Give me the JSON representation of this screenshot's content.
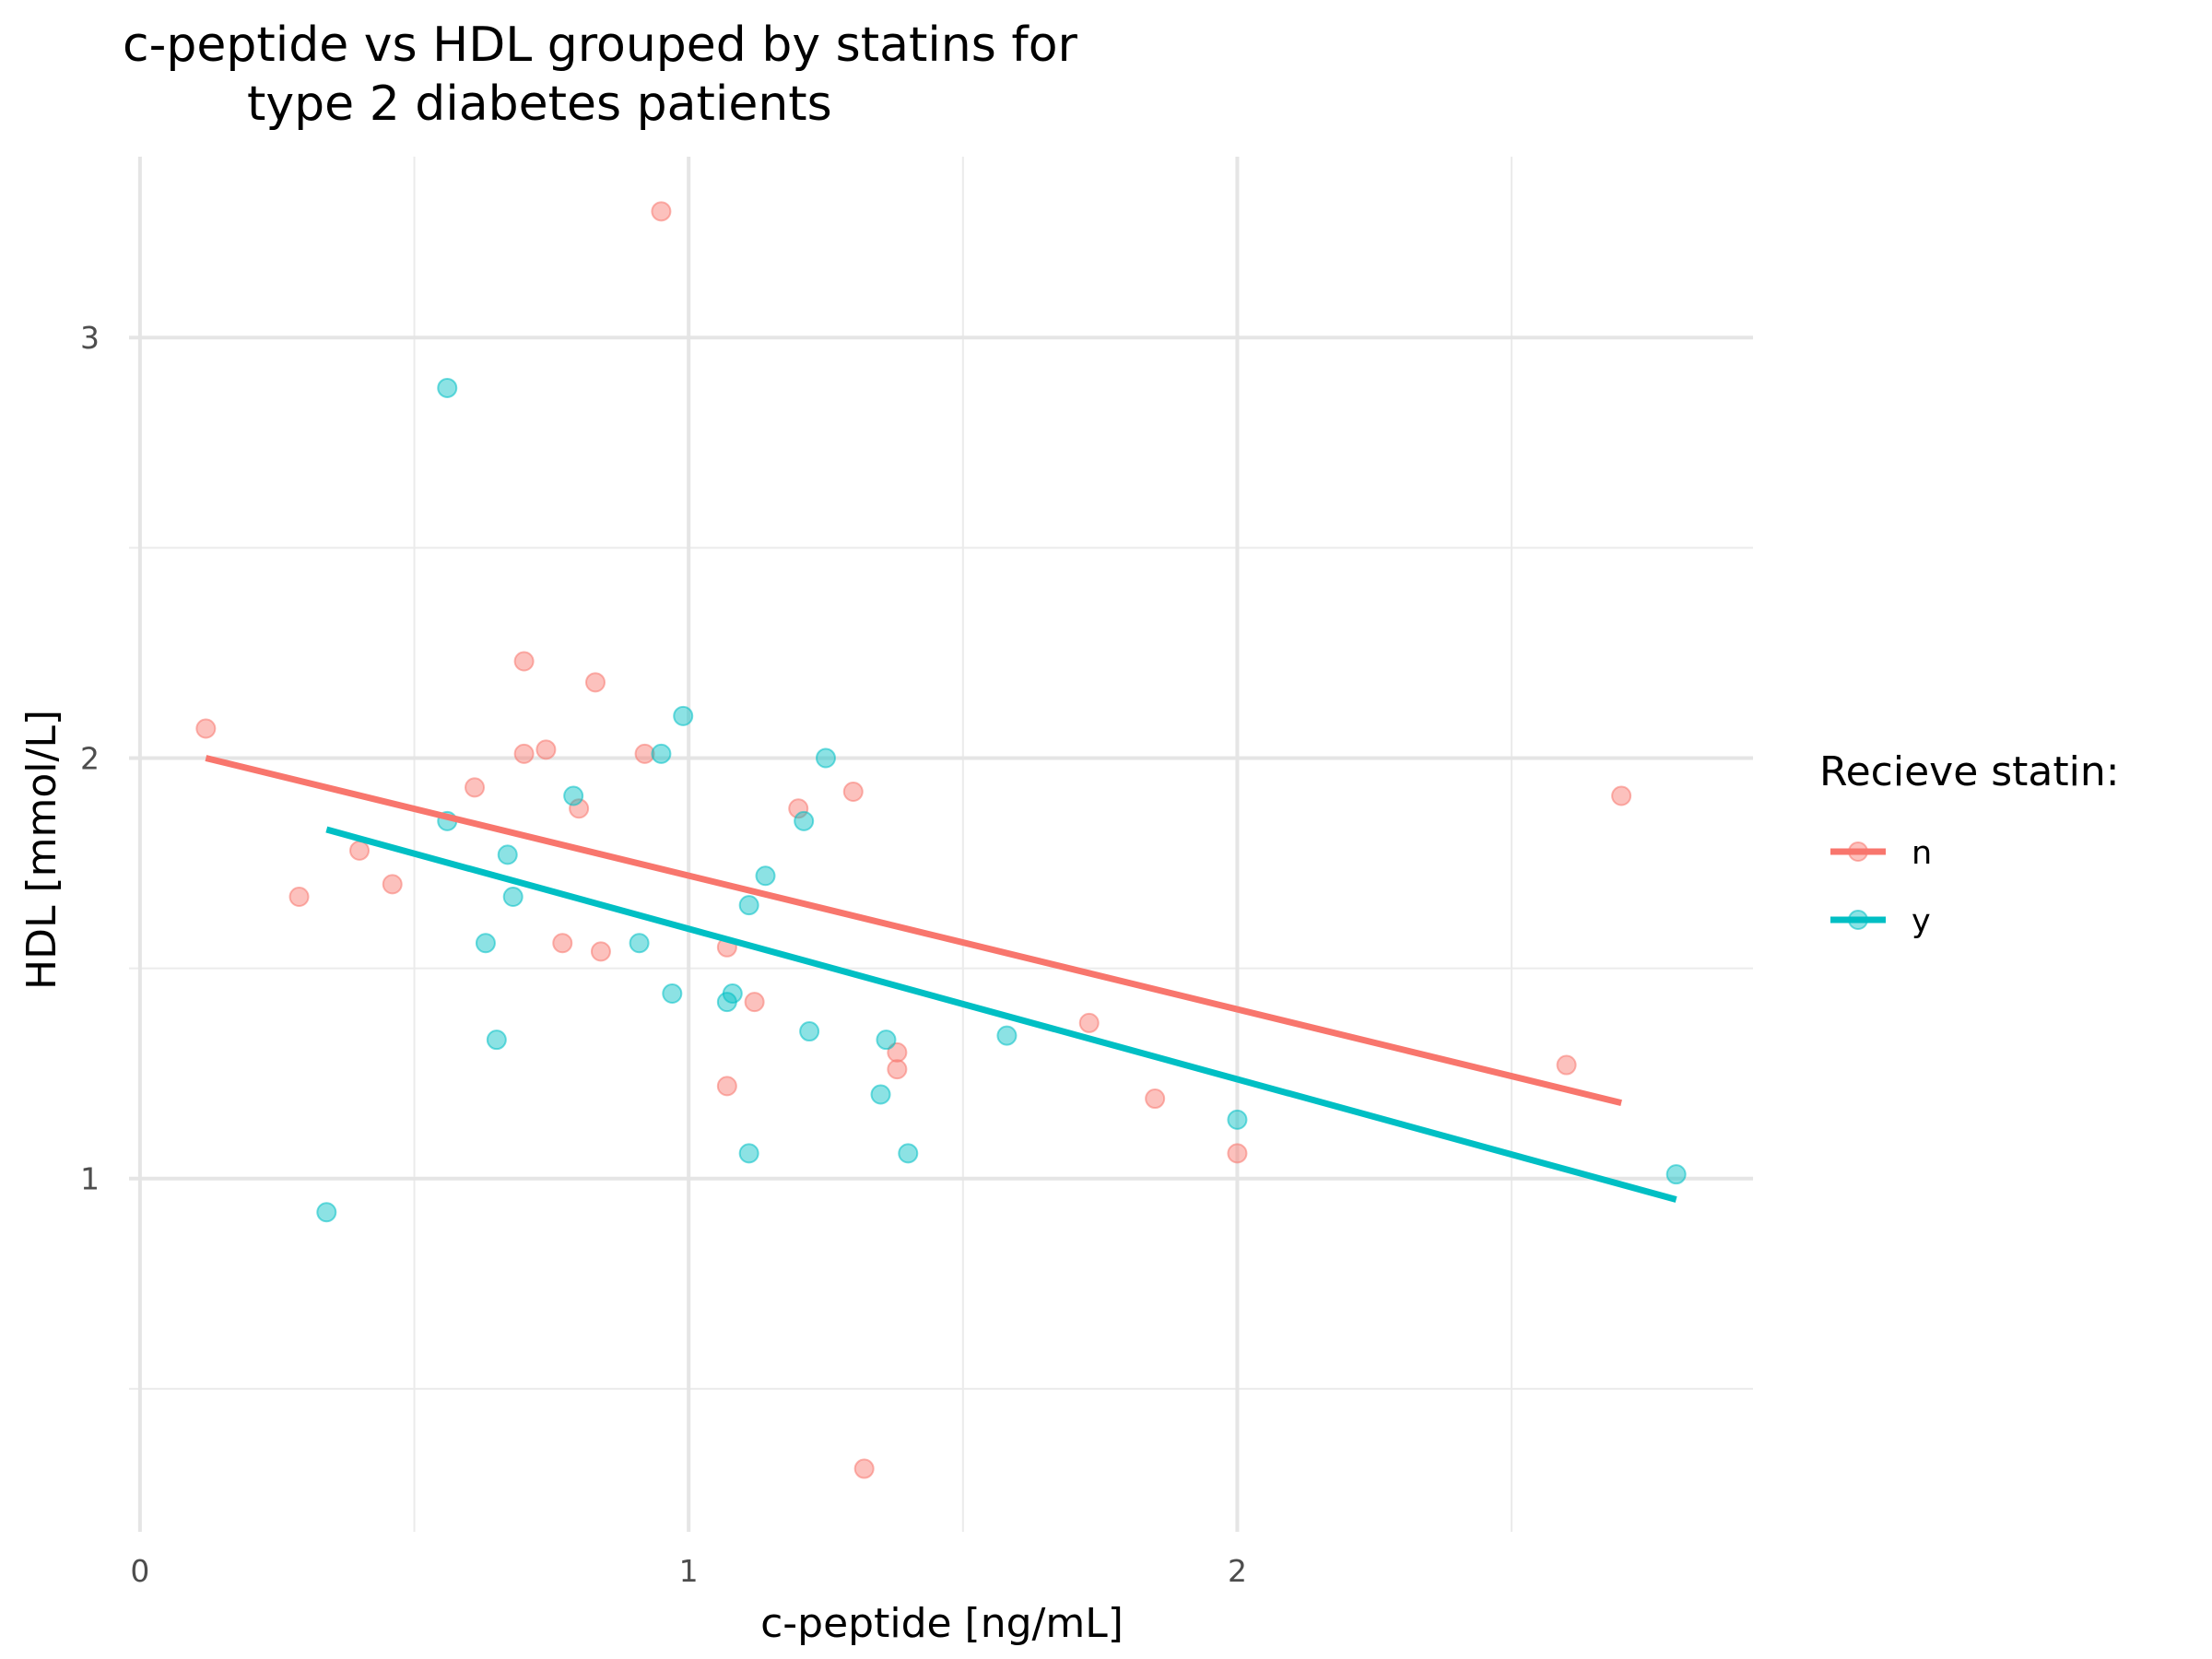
{
  "chart_data": {
    "type": "scatter",
    "title": "c-peptide vs HDL grouped by statins for",
    "title_line2": "type 2 diabetes patients",
    "xlabel": "c-peptide [ng/mL]",
    "ylabel": "HDL [mmol/L]",
    "xlim": [
      -0.02,
      2.94
    ],
    "ylim": [
      0.16,
      3.43
    ],
    "x_ticks": [
      0,
      1,
      2
    ],
    "y_ticks": [
      1,
      2,
      3
    ],
    "x_minor": [
      0.5,
      1.5,
      2.5
    ],
    "y_minor": [
      0.5,
      1.5,
      2.5
    ],
    "grid": true,
    "legend_title": "Recieve statin:",
    "legend_position": "right",
    "series": [
      {
        "name": "n",
        "color": "#F8766D",
        "points": [
          [
            0.12,
            2.07
          ],
          [
            0.29,
            1.67
          ],
          [
            0.4,
            1.78
          ],
          [
            0.46,
            1.7
          ],
          [
            0.61,
            1.93
          ],
          [
            0.7,
            2.23
          ],
          [
            0.7,
            2.01
          ],
          [
            0.74,
            2.02
          ],
          [
            0.77,
            1.56
          ],
          [
            0.8,
            1.88
          ],
          [
            0.83,
            2.18
          ],
          [
            0.84,
            1.54
          ],
          [
            0.92,
            2.01
          ],
          [
            0.95,
            3.3
          ],
          [
            1.07,
            1.55
          ],
          [
            1.07,
            1.22
          ],
          [
            1.12,
            1.42
          ],
          [
            1.2,
            1.88
          ],
          [
            1.3,
            1.92
          ],
          [
            1.32,
            0.31
          ],
          [
            1.38,
            1.3
          ],
          [
            1.38,
            1.26
          ],
          [
            1.73,
            1.37
          ],
          [
            1.85,
            1.19
          ],
          [
            2.0,
            1.06
          ],
          [
            2.6,
            1.27
          ],
          [
            2.7,
            1.91
          ]
        ],
        "fit": [
          [
            0.12,
            2.0
          ],
          [
            2.7,
            1.18
          ]
        ]
      },
      {
        "name": "y",
        "color": "#00BFC4",
        "points": [
          [
            0.34,
            0.92
          ],
          [
            0.56,
            2.88
          ],
          [
            0.56,
            1.85
          ],
          [
            0.63,
            1.56
          ],
          [
            0.65,
            1.33
          ],
          [
            0.67,
            1.77
          ],
          [
            0.68,
            1.67
          ],
          [
            0.79,
            1.91
          ],
          [
            0.91,
            1.56
          ],
          [
            0.95,
            2.01
          ],
          [
            0.97,
            1.44
          ],
          [
            0.99,
            2.1
          ],
          [
            1.07,
            1.42
          ],
          [
            1.08,
            1.44
          ],
          [
            1.11,
            1.65
          ],
          [
            1.11,
            1.06
          ],
          [
            1.14,
            1.72
          ],
          [
            1.21,
            1.85
          ],
          [
            1.22,
            1.35
          ],
          [
            1.25,
            2.0
          ],
          [
            1.35,
            1.2
          ],
          [
            1.36,
            1.33
          ],
          [
            1.4,
            1.06
          ],
          [
            1.58,
            1.34
          ],
          [
            2.0,
            1.14
          ],
          [
            2.8,
            1.01
          ]
        ],
        "fit": [
          [
            0.34,
            1.83
          ],
          [
            2.8,
            0.95
          ]
        ]
      }
    ]
  }
}
